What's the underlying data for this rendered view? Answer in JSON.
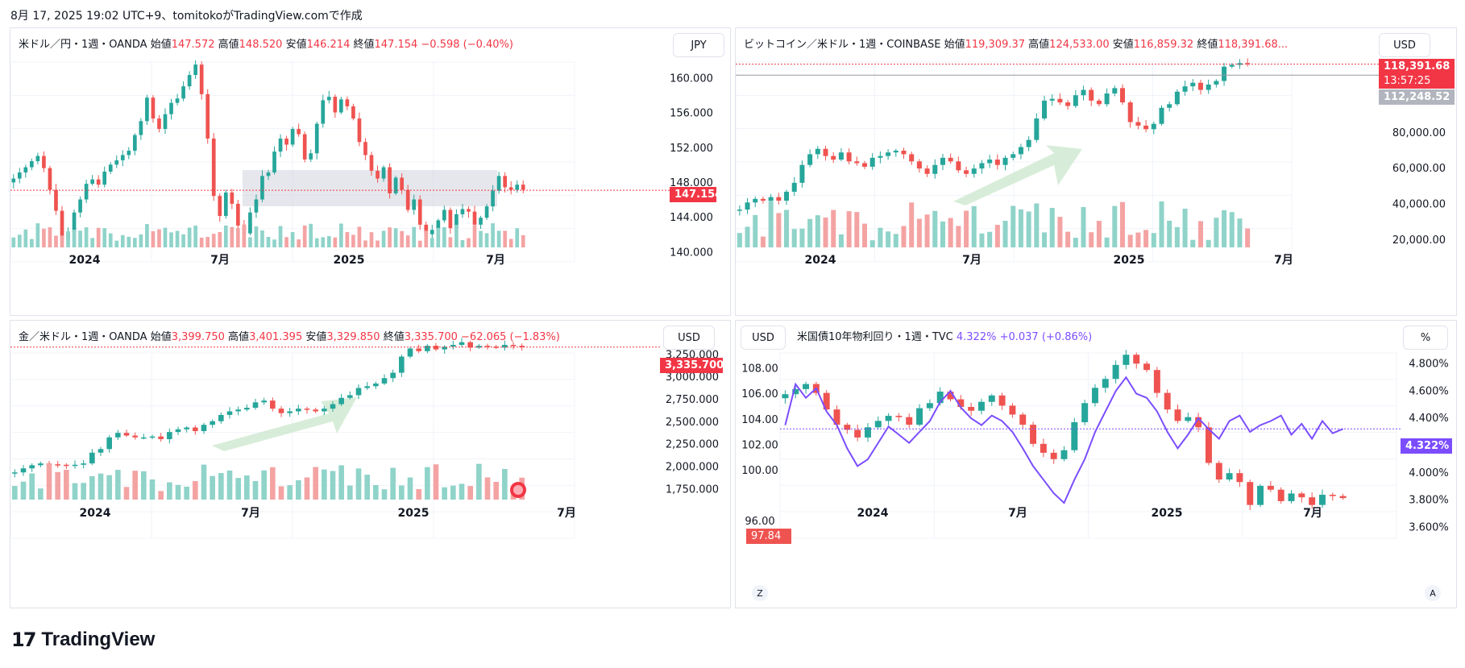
{
  "header": {
    "text": "8月 17, 2025 19:02 UTC+9、tomitokoがTradingView.comで作成"
  },
  "brand": {
    "word": "TradingView",
    "mark": "17"
  },
  "colors": {
    "up": "#26a69a",
    "down": "#ef5350",
    "vol_up": "#8fd3c9",
    "vol_down": "#f4a3a3",
    "price_tag": "#f23645",
    "purple": "#7b4dff",
    "blue": "#2196f3"
  },
  "time_axis": [
    "2024",
    "7月",
    "2025",
    "7月"
  ],
  "panels": {
    "usdjpy": {
      "legend": {
        "name": "米ドル／円・1週・OANDA",
        "open_label": "始値",
        "open": "147.572",
        "high_label": "高値",
        "high": "148.520",
        "low_label": "安値",
        "low": "146.214",
        "close_label": "終値",
        "close": "147.154",
        "change": "−0.598 (−0.40%)"
      },
      "currency": "JPY",
      "price_tag": "147.154",
      "y_ticks": [
        "160.000",
        "156.000",
        "152.000",
        "148.000",
        "144.000",
        "140.000"
      ]
    },
    "btcusd": {
      "legend": {
        "name": "ビットコイン／米ドル・1週・COINBASE",
        "open_label": "始値",
        "open": "119,309.37",
        "high_label": "高値",
        "high": "124,533.00",
        "low_label": "安値",
        "low": "116,859.32",
        "close_label": "終値",
        "close": "118,391.68..."
      },
      "currency": "USD",
      "price_tag": "118,391.68",
      "countdown": "13:57:25",
      "line_tag": "112,248.52",
      "y_ticks": [
        "100,000.00",
        "80,000.00",
        "60,000.00",
        "40,000.00",
        "20,000.00"
      ]
    },
    "xauusd": {
      "legend": {
        "name": "金／米ドル・1週・OANDA",
        "open_label": "始値",
        "open": "3,399.750",
        "high_label": "高値",
        "high": "3,401.395",
        "low_label": "安値",
        "low": "3,329.850",
        "close_label": "終値",
        "close": "3,335.700",
        "change": "−62.065 (−1.83%)"
      },
      "currency": "USD",
      "price_tag": "3,335.700",
      "y_ticks": [
        "3,250.000",
        "3,000.000",
        "2,750.000",
        "2,500.000",
        "2,250.000",
        "2,000.000",
        "1,750.000"
      ]
    },
    "dxy_us10y": {
      "legend": {
        "name": "米国債10年物利回り・1週・TVC",
        "value": "4.322%",
        "change": "+0.037 (+0.86%)"
      },
      "left_currency": "USD",
      "right_unit": "%",
      "left_tag": "97.84",
      "right_tag": "4.322%",
      "y_ticks_left": [
        "108.00",
        "106.00",
        "104.00",
        "102.00",
        "100.00",
        "96.00"
      ],
      "y_ticks_right": [
        "4.800%",
        "4.600%",
        "4.400%",
        "4.200%",
        "4.000%",
        "3.800%",
        "3.600%"
      ],
      "corner_left": "Z",
      "corner_right": "A"
    }
  },
  "chart_data": [
    {
      "type": "candlestick",
      "title": "米ドル／円・1週・OANDA",
      "x_labels": [
        "2024",
        "7月",
        "2025",
        "7月"
      ],
      "ylim": [
        138,
        163
      ],
      "closes": [
        148.5,
        149.2,
        149.8,
        150.5,
        151.1,
        149.7,
        147.2,
        144.8,
        141.5,
        142.3,
        144.6,
        146.1,
        147.9,
        148.4,
        147.8,
        149.3,
        150.1,
        150.6,
        151.2,
        151.7,
        153.5,
        155.1,
        157.8,
        155.4,
        154.2,
        155.9,
        157.2,
        157.7,
        159.1,
        160.4,
        161.6,
        158.2,
        153.1,
        146.5,
        144.2,
        146.9,
        145.6,
        143.1,
        142.2,
        144.6,
        146.1,
        148.8,
        149.2,
        151.6,
        153.1,
        152.4,
        154.2,
        153.6,
        150.7,
        151.4,
        154.8,
        157.5,
        157.9,
        156.1,
        157.6,
        156.8,
        155.4,
        152.7,
        151.2,
        149.4,
        148.5,
        149.8,
        146.8,
        148.6,
        147.2,
        144.9,
        146.1,
        143.2,
        142.1,
        142.6,
        143.7,
        144.9,
        142.8,
        144.4,
        145.0,
        144.7,
        143.2,
        144.0,
        145.3,
        147.1,
        148.8,
        147.5,
        147.2,
        147.8,
        147.2
      ]
    },
    {
      "type": "candlestick",
      "title": "ビットコイン／米ドル・1週・COINBASE",
      "x_labels": [
        "2024",
        "7月",
        "2025",
        "7月"
      ],
      "ylim": [
        10000,
        125000
      ],
      "closes": [
        37000,
        41000,
        43000,
        42000,
        44000,
        42000,
        47000,
        52000,
        62000,
        68000,
        71000,
        67000,
        65000,
        69000,
        64000,
        63000,
        61000,
        66000,
        67000,
        69000,
        70000,
        68000,
        64000,
        60000,
        57000,
        62000,
        66000,
        64000,
        59000,
        57000,
        60000,
        63000,
        65000,
        62000,
        66000,
        68000,
        72000,
        76000,
        88000,
        98000,
        99000,
        97000,
        95000,
        101000,
        104000,
        98000,
        96000,
        102000,
        105000,
        97000,
        86000,
        84000,
        82000,
        85000,
        94000,
        96000,
        103000,
        106000,
        108000,
        104000,
        107000,
        109000,
        117000,
        118000,
        119000,
        118391
      ]
    },
    {
      "type": "candlestick",
      "title": "金／米ドル・1週・OANDA",
      "x_labels": [
        "2024",
        "7月",
        "2025",
        "7月"
      ],
      "ylim": [
        1700,
        3450
      ],
      "closes": [
        1940,
        1985,
        2020,
        2040,
        2030,
        2025,
        2015,
        2025,
        2040,
        2160,
        2200,
        2330,
        2380,
        2350,
        2330,
        2330,
        2340,
        2310,
        2390,
        2420,
        2440,
        2400,
        2470,
        2510,
        2580,
        2620,
        2640,
        2660,
        2720,
        2740,
        2650,
        2600,
        2620,
        2650,
        2640,
        2620,
        2650,
        2700,
        2770,
        2800,
        2880,
        2900,
        2930,
        2990,
        3050,
        3230,
        3320,
        3290,
        3350,
        3310,
        3340,
        3360,
        3390,
        3330,
        3350,
        3340,
        3330,
        3360,
        3350,
        3335
      ]
    },
    {
      "type": "candlestick+line",
      "title": "米国債10年物利回り・1週・TVC",
      "x_labels": [
        "2024",
        "7月",
        "2025",
        "7月"
      ],
      "ylim": [
        95,
        110
      ],
      "y2lim": [
        3.55,
        4.95
      ],
      "closes": [
        106.0,
        106.4,
        106.8,
        106.1,
        104.8,
        103.6,
        103.2,
        102.6,
        103.4,
        103.9,
        104.3,
        104.2,
        103.6,
        104.9,
        105.3,
        106.2,
        105.6,
        105.0,
        104.7,
        105.4,
        105.9,
        105.1,
        104.4,
        103.6,
        102.1,
        101.4,
        100.9,
        101.6,
        103.8,
        105.3,
        106.5,
        107.2,
        108.3,
        109.1,
        108.4,
        107.9,
        106.1,
        104.8,
        103.9,
        104.2,
        103.4,
        100.6,
        99.3,
        99.8,
        99.1,
        97.3,
        98.8,
        98.5,
        97.6,
        98.2,
        97.9,
        97.3,
        98.1,
        98.0,
        97.84
      ],
      "series2_closes": [
        4.35,
        4.65,
        4.55,
        4.62,
        4.45,
        4.35,
        4.18,
        4.05,
        4.1,
        4.22,
        4.34,
        4.28,
        4.22,
        4.3,
        4.38,
        4.52,
        4.6,
        4.48,
        4.4,
        4.35,
        4.42,
        4.38,
        4.3,
        4.18,
        4.05,
        3.95,
        3.85,
        3.78,
        3.95,
        4.1,
        4.3,
        4.45,
        4.6,
        4.7,
        4.58,
        4.55,
        4.45,
        4.3,
        4.18,
        4.28,
        4.4,
        4.32,
        4.25,
        4.38,
        4.42,
        4.3,
        4.35,
        4.38,
        4.42,
        4.28,
        4.36,
        4.25,
        4.38,
        4.29,
        4.322
      ]
    }
  ]
}
